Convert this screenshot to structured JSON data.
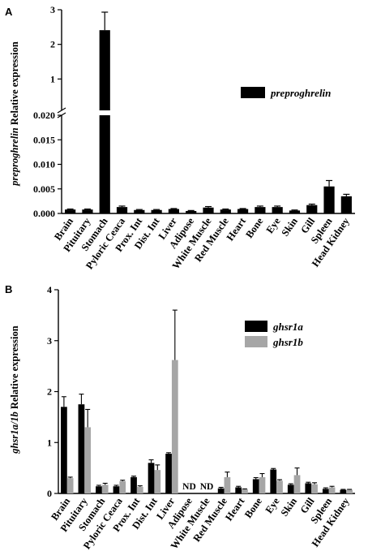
{
  "chart_data": [
    {
      "panel": "A",
      "type": "bar",
      "ylabel_italic": "preproghrelin",
      "ylabel_rest": " Relative expression",
      "axis_break": true,
      "ylim_lower": [
        0,
        0.02
      ],
      "ylim_upper": [
        0,
        3
      ],
      "yticks_lower": [
        "0.000",
        "0.005",
        "0.010",
        "0.015",
        "0.020"
      ],
      "yticks_upper": [
        "1",
        "2",
        "3"
      ],
      "categories": [
        "Brain",
        "Pituitary",
        "Stomach",
        "Pyloric Ceaca",
        "Prox. Int",
        "Dist. Int",
        "Liver",
        "Adipose",
        "White Muscle",
        "Red Muscle",
        "Heart",
        "Bone",
        "Eye",
        "Skin",
        "Gill",
        "Spleen",
        "Head Kidney"
      ],
      "series": [
        {
          "name": "preproghrelin",
          "color": "#000000",
          "values": [
            0.0008,
            0.0008,
            2.41,
            0.0013,
            0.0007,
            0.0007,
            0.0009,
            0.0005,
            0.0012,
            0.0008,
            0.0009,
            0.0013,
            0.0013,
            0.0006,
            0.0017,
            0.0055,
            0.0035
          ],
          "errors": [
            0.0001,
            0.0001,
            0.52,
            0.0002,
            0.0001,
            0.0001,
            0.0001,
            0.0001,
            0.0002,
            0.0001,
            0.0001,
            0.0002,
            0.0002,
            0.0001,
            0.0002,
            0.0012,
            0.0004
          ]
        }
      ]
    },
    {
      "panel": "B",
      "type": "bar",
      "ylabel_italic": "ghsr1a/1b",
      "ylabel_rest": " Relative expression",
      "ylim": [
        0,
        4
      ],
      "yticks": [
        "0",
        "1",
        "2",
        "3",
        "4"
      ],
      "categories": [
        "Brain",
        "Pituitary",
        "Stomach",
        "Pyloric Ceaca",
        "Prox. Int",
        "Dist. Int",
        "Liver",
        "Adipose",
        "White Muscle",
        "Red Muscle",
        "Heart",
        "Bone",
        "Eye",
        "Skin",
        "Gill",
        "Spleen",
        "Head Kidney"
      ],
      "nd_label": "ND",
      "nd_categories": [
        "Adipose",
        "White Muscle"
      ],
      "series": [
        {
          "name": "ghsr1a",
          "color": "#000000",
          "values": [
            1.7,
            1.75,
            0.14,
            0.14,
            0.32,
            0.6,
            0.78,
            null,
            null,
            0.1,
            0.12,
            0.28,
            0.47,
            0.17,
            0.2,
            0.09,
            0.07
          ],
          "errors": [
            0.2,
            0.2,
            0.02,
            0.02,
            0.02,
            0.06,
            0.02,
            null,
            null,
            0.02,
            0.02,
            0.03,
            0.02,
            0.02,
            0.02,
            0.02,
            0.01
          ]
        },
        {
          "name": "ghsr1b",
          "color": "#a6a6a6",
          "values": [
            0.3,
            1.3,
            0.17,
            0.24,
            0.13,
            0.46,
            2.62,
            null,
            null,
            0.32,
            0.08,
            0.32,
            0.25,
            0.36,
            0.18,
            0.12,
            0.07
          ],
          "errors": [
            0.02,
            0.35,
            0.03,
            0.02,
            0.02,
            0.1,
            0.98,
            null,
            null,
            0.1,
            0.01,
            0.07,
            0.02,
            0.14,
            0.03,
            0.02,
            0.01
          ]
        }
      ]
    }
  ]
}
